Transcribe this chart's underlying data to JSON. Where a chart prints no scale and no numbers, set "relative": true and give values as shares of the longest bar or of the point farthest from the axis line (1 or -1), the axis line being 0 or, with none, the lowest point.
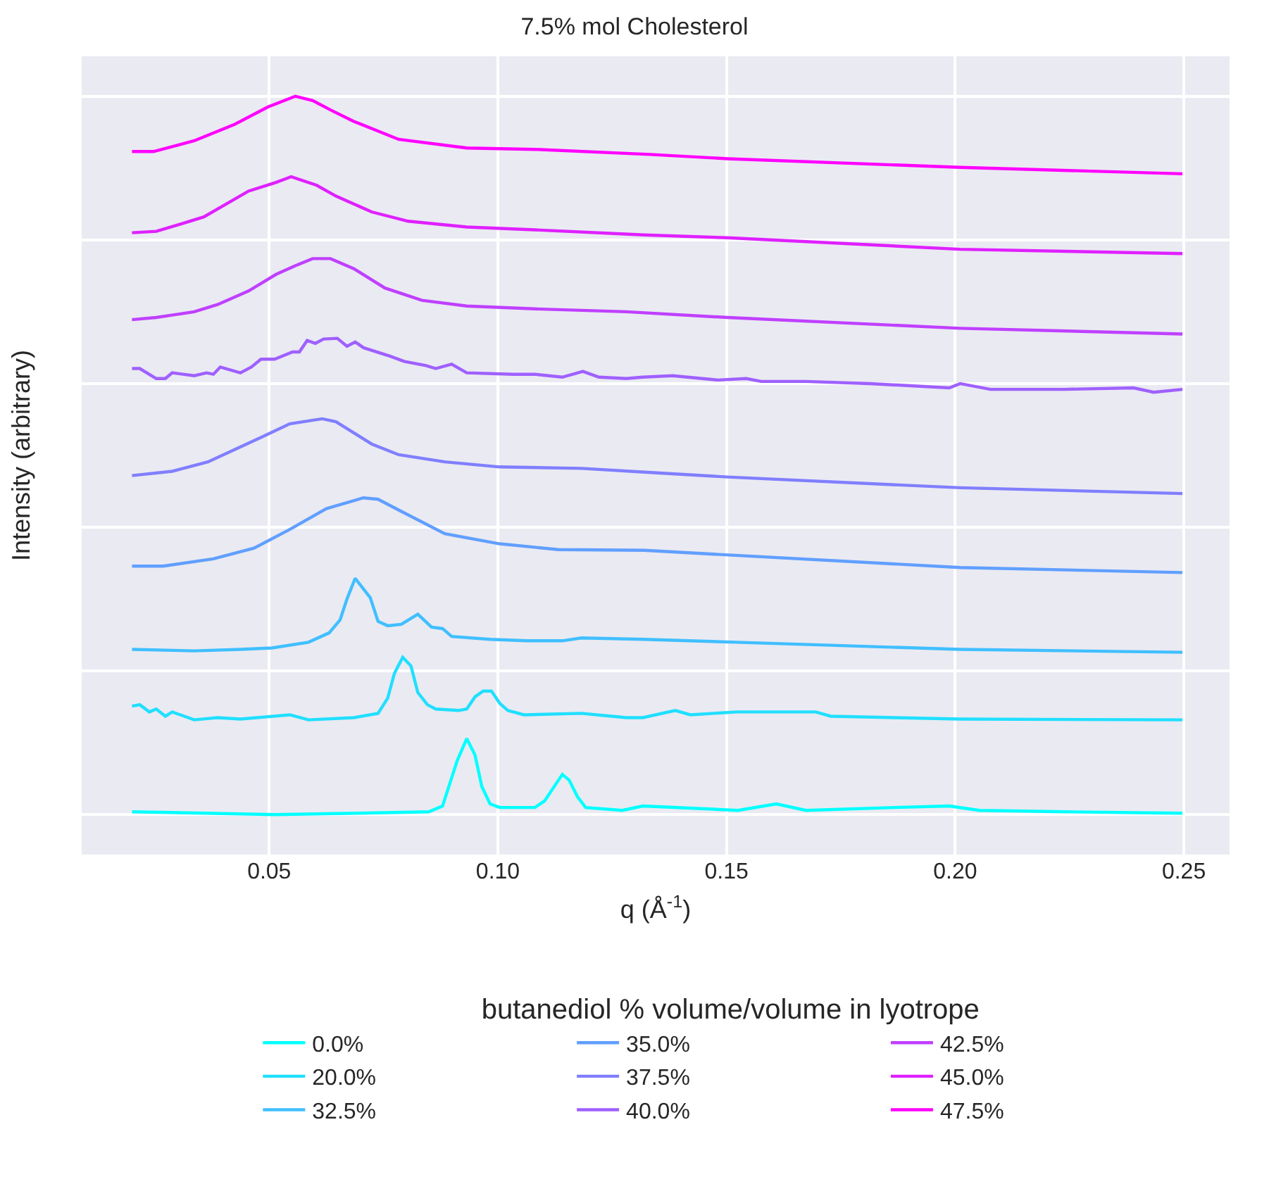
{
  "chart_data": {
    "type": "line",
    "title": "7.5% mol Cholesterol",
    "xlabel": "q (Å$^{-1}$)",
    "ylabel": "Intensity (arbitrary)",
    "legend_title": "butanediol % volume/volume in lyotrope",
    "relative": true,
    "xlim": [
      0.009,
      0.26
    ],
    "xticks": [
      0.05,
      {
        "value": 0.1,
        "label": "0.10"
      },
      0.15,
      {
        "value": 0.2,
        "label": "0.20"
      },
      0.25
    ],
    "grid": true,
    "legend": "bottom",
    "marker": "none",
    "line_style": "solid",
    "series": [
      {
        "name": "0.0%",
        "color": "#00ffff",
        "x": [
          0.02,
          0.0363,
          0.0512,
          0.0691,
          0.0849,
          0.0879,
          0.0911,
          0.0932,
          0.095,
          0.0965,
          0.0983,
          0.1004,
          0.1081,
          0.1102,
          0.1141,
          0.1156,
          0.1174,
          0.1192,
          0.1272,
          0.1317,
          0.1525,
          0.1609,
          0.1674,
          0.1868,
          0.1987,
          0.2053,
          0.2241,
          0.2497
        ],
        "values": [
          0.004,
          0.002,
          0,
          0.002,
          0.004,
          0.012,
          0.075,
          0.106,
          0.083,
          0.039,
          0.015,
          0.01,
          0.01,
          0.019,
          0.056,
          0.048,
          0.025,
          0.01,
          0.006,
          0.012,
          0.006,
          0.015,
          0.006,
          0.01,
          0.012,
          0.006,
          0.004,
          0.002
        ]
      },
      {
        "name": "20.0%",
        "color": "#20dfff",
        "x": [
          0.02,
          0.0217,
          0.0238,
          0.0253,
          0.0273,
          0.0288,
          0.0336,
          0.0387,
          0.0437,
          0.0545,
          0.0586,
          0.0685,
          0.0738,
          0.0759,
          0.0774,
          0.0792,
          0.081,
          0.0825,
          0.0846,
          0.0864,
          0.0914,
          0.0932,
          0.095,
          0.0968,
          0.0986,
          0.1004,
          0.1022,
          0.1057,
          0.1183,
          0.1281,
          0.1317,
          0.1388,
          0.1421,
          0.1522,
          0.1695,
          0.1728,
          0.2011,
          0.2497
        ],
        "values": [
          0.151,
          0.153,
          0.143,
          0.147,
          0.137,
          0.143,
          0.132,
          0.135,
          0.133,
          0.139,
          0.132,
          0.135,
          0.141,
          0.162,
          0.197,
          0.219,
          0.207,
          0.17,
          0.153,
          0.147,
          0.145,
          0.147,
          0.164,
          0.172,
          0.172,
          0.155,
          0.145,
          0.139,
          0.141,
          0.135,
          0.135,
          0.145,
          0.139,
          0.143,
          0.143,
          0.137,
          0.133,
          0.132
        ]
      },
      {
        "name": "32.5%",
        "color": "#40bfff",
        "x": [
          0.02,
          0.0336,
          0.0437,
          0.0506,
          0.0586,
          0.0631,
          0.0655,
          0.067,
          0.0688,
          0.0721,
          0.0738,
          0.0759,
          0.0789,
          0.0825,
          0.0855,
          0.0879,
          0.0899,
          0.0983,
          0.1063,
          0.1141,
          0.1183,
          0.132,
          0.1522,
          0.2011,
          0.2497
        ],
        "values": [
          0.23,
          0.228,
          0.23,
          0.232,
          0.24,
          0.253,
          0.271,
          0.3,
          0.329,
          0.302,
          0.269,
          0.263,
          0.265,
          0.279,
          0.261,
          0.259,
          0.248,
          0.244,
          0.242,
          0.242,
          0.246,
          0.244,
          0.24,
          0.23,
          0.226
        ]
      },
      {
        "name": "35.0%",
        "color": "#609fff",
        "x": [
          0.02,
          0.0268,
          0.0378,
          0.0467,
          0.0545,
          0.0625,
          0.0706,
          0.0738,
          0.0783,
          0.0884,
          0.1004,
          0.1132,
          0.132,
          0.149,
          0.2011,
          0.2497
        ],
        "values": [
          0.346,
          0.346,
          0.356,
          0.371,
          0.397,
          0.426,
          0.441,
          0.439,
          0.424,
          0.391,
          0.377,
          0.369,
          0.368,
          0.362,
          0.344,
          0.337
        ]
      },
      {
        "name": "37.5%",
        "color": "#807fff",
        "x": [
          0.02,
          0.0288,
          0.0366,
          0.0485,
          0.0545,
          0.0616,
          0.0646,
          0.0724,
          0.0783,
          0.0884,
          0.1004,
          0.1183,
          0.1341,
          0.1502,
          0.2011,
          0.2497
        ],
        "values": [
          0.472,
          0.478,
          0.491,
          0.526,
          0.544,
          0.551,
          0.547,
          0.516,
          0.501,
          0.491,
          0.484,
          0.482,
          0.476,
          0.47,
          0.455,
          0.447
        ]
      },
      {
        "name": "40.0%",
        "color": "#9f60ff",
        "x": [
          0.02,
          0.0217,
          0.0253,
          0.0273,
          0.0288,
          0.0336,
          0.0363,
          0.0378,
          0.0393,
          0.0437,
          0.0461,
          0.0482,
          0.0512,
          0.0551,
          0.0566,
          0.0583,
          0.0601,
          0.0619,
          0.0649,
          0.067,
          0.0688,
          0.0706,
          0.0765,
          0.0795,
          0.0843,
          0.0864,
          0.0899,
          0.0932,
          0.1034,
          0.1081,
          0.1141,
          0.1186,
          0.1221,
          0.1281,
          0.1317,
          0.1382,
          0.1481,
          0.1543,
          0.1576,
          0.1674,
          0.1814,
          0.1987,
          0.2011,
          0.2077,
          0.2238,
          0.239,
          0.2434,
          0.2497
        ],
        "values": [
          0.621,
          0.621,
          0.607,
          0.607,
          0.615,
          0.611,
          0.615,
          0.613,
          0.623,
          0.615,
          0.623,
          0.634,
          0.634,
          0.644,
          0.644,
          0.66,
          0.656,
          0.662,
          0.663,
          0.652,
          0.658,
          0.65,
          0.638,
          0.631,
          0.625,
          0.621,
          0.627,
          0.615,
          0.613,
          0.613,
          0.609,
          0.617,
          0.609,
          0.607,
          0.609,
          0.611,
          0.605,
          0.607,
          0.603,
          0.603,
          0.6,
          0.594,
          0.6,
          0.592,
          0.592,
          0.594,
          0.588,
          0.592
        ]
      },
      {
        "name": "42.5%",
        "color": "#bf40ff",
        "x": [
          0.02,
          0.0253,
          0.0336,
          0.0387,
          0.0455,
          0.0515,
          0.0557,
          0.0595,
          0.0634,
          0.0685,
          0.0753,
          0.0834,
          0.0932,
          0.1081,
          0.1281,
          0.1502,
          0.2011,
          0.2497
        ],
        "values": [
          0.689,
          0.692,
          0.7,
          0.71,
          0.729,
          0.752,
          0.764,
          0.774,
          0.774,
          0.76,
          0.733,
          0.716,
          0.708,
          0.704,
          0.7,
          0.692,
          0.677,
          0.669
        ]
      },
      {
        "name": "45.0%",
        "color": "#df20ff",
        "x": [
          0.02,
          0.0253,
          0.0306,
          0.0357,
          0.0455,
          0.0515,
          0.0548,
          0.0604,
          0.0646,
          0.0724,
          0.0804,
          0.0932,
          0.1081,
          0.132,
          0.1502,
          0.2011,
          0.2497
        ],
        "values": [
          0.81,
          0.812,
          0.822,
          0.832,
          0.868,
          0.88,
          0.888,
          0.876,
          0.861,
          0.839,
          0.826,
          0.818,
          0.814,
          0.807,
          0.803,
          0.787,
          0.781
        ]
      },
      {
        "name": "47.5%",
        "color": "#ff00ff",
        "x": [
          0.02,
          0.0247,
          0.0336,
          0.0425,
          0.0497,
          0.0557,
          0.0595,
          0.0634,
          0.0685,
          0.0783,
          0.0932,
          0.1081,
          0.1332,
          0.1502,
          0.2011,
          0.2497
        ],
        "values": [
          0.923,
          0.923,
          0.938,
          0.961,
          0.985,
          1,
          0.994,
          0.981,
          0.965,
          0.94,
          0.928,
          0.926,
          0.919,
          0.913,
          0.901,
          0.892
        ]
      }
    ]
  }
}
